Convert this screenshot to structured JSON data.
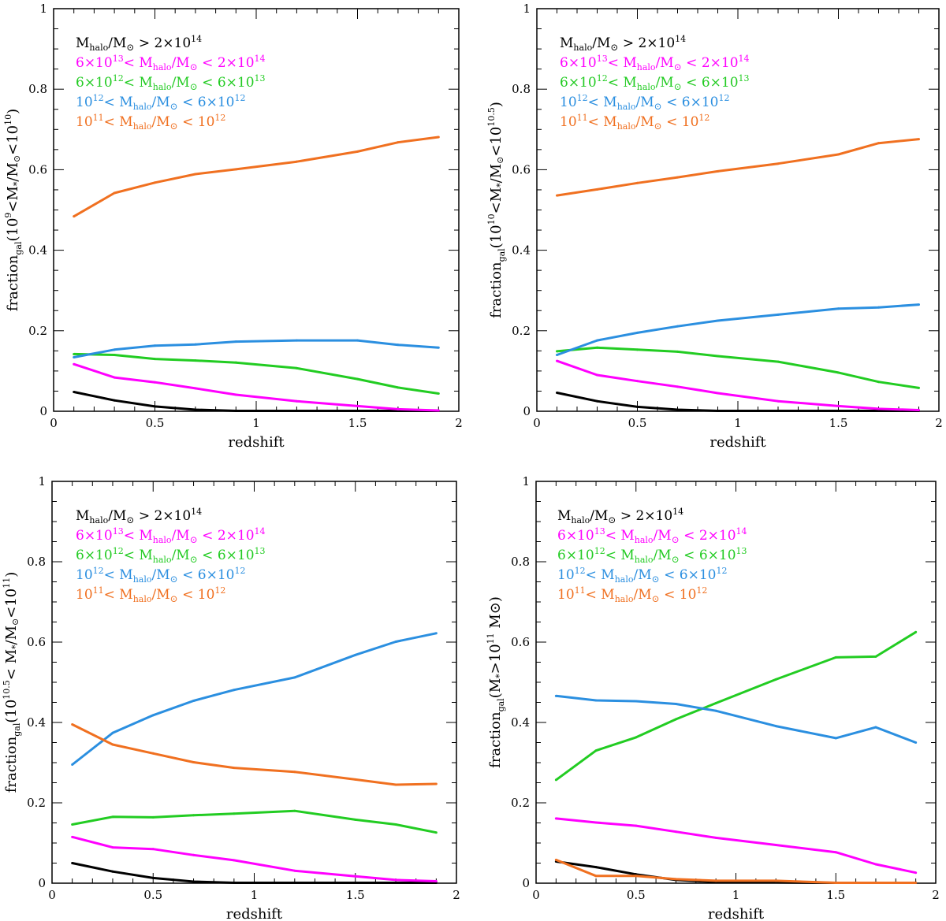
{
  "figure": {
    "description_free": true
  },
  "legend": {
    "colors": [
      "#000000",
      "#ff00ff",
      "#22cc22",
      "#2b8fe0",
      "#f07020"
    ],
    "lines": [
      {
        "a": "M",
        "b": "halo",
        "c": "/M",
        "d": "⊙",
        "e": " > 2×10",
        "f": "14"
      },
      {
        "pre": "6×10",
        "preSup": "13",
        "mid": "< M",
        "sub": "halo",
        "post": "/M",
        "sun": "⊙",
        "tail": " < 2×10",
        "tailSup": "14"
      },
      {
        "pre": "6×10",
        "preSup": "12",
        "mid": "< M",
        "sub": "halo",
        "post": "/M",
        "sun": "⊙",
        "tail": " < 6×10",
        "tailSup": "13"
      },
      {
        "pre": "10",
        "preSup": "12",
        "mid": "< M",
        "sub": "halo",
        "post": "/M",
        "sun": "⊙",
        "tail": " < 6×10",
        "tailSup": "12"
      },
      {
        "pre": "10",
        "preSup": "11",
        "mid": "< M",
        "sub": "halo",
        "post": "/M",
        "sun": "⊙",
        "tail": " < 10",
        "tailSup": "12"
      }
    ]
  },
  "chart_data": [
    {
      "type": "line",
      "xlabel": "redshift",
      "ylabel": "fraction_gal(10^9<M*/M⊙<10^10)",
      "ylabelParts": {
        "pre": "fraction",
        "sub": "gal",
        "body": "(10",
        "sup1": "9",
        "mid": "<M",
        "sub2": "*",
        "mid2": "/M",
        "sun": "⊙",
        "mid3": "<10",
        "sup2": "10",
        "end": ")"
      },
      "xlim": [
        0,
        2
      ],
      "ylim": [
        0,
        1
      ],
      "xticks": [
        "0",
        "0.5",
        "1",
        "1.5",
        "2"
      ],
      "yticks": [
        "0",
        "0.2",
        "0.4",
        "0.6",
        "0.8",
        "1"
      ],
      "x": [
        0.1,
        0.3,
        0.5,
        0.7,
        0.9,
        1.2,
        1.5,
        1.7,
        1.9
      ],
      "series": [
        {
          "name": "Mhalo/M⊙ > 2×10^14",
          "values": [
            0.048,
            0.027,
            0.012,
            0.004,
            0.001,
            0.001,
            0.001,
            0.001,
            0.001
          ]
        },
        {
          "name": "6×10^13 < Mhalo/M⊙ < 2×10^14",
          "values": [
            0.117,
            0.084,
            0.072,
            0.057,
            0.041,
            0.025,
            0.013,
            0.005,
            0.002
          ]
        },
        {
          "name": "6×10^12 < Mhalo/M⊙ < 6×10^13",
          "values": [
            0.142,
            0.14,
            0.13,
            0.126,
            0.121,
            0.107,
            0.08,
            0.059,
            0.044
          ]
        },
        {
          "name": "10^12 < Mhalo/M⊙ < 6×10^12",
          "values": [
            0.134,
            0.153,
            0.163,
            0.166,
            0.173,
            0.176,
            0.176,
            0.165,
            0.158
          ]
        },
        {
          "name": "10^11 < Mhalo/M⊙ < 10^12",
          "values": [
            0.484,
            0.542,
            0.568,
            0.589,
            0.601,
            0.62,
            0.645,
            0.668,
            0.681
          ]
        }
      ]
    },
    {
      "type": "line",
      "xlabel": "redshift",
      "ylabel": "fraction_gal(10^10<M*/M⊙<10^10.5)",
      "ylabelParts": {
        "pre": "fraction",
        "sub": "gal",
        "body": "(10",
        "sup1": "10",
        "mid": "<M",
        "sub2": "*",
        "mid2": "/M",
        "sun": "⊙",
        "mid3": "<10",
        "sup2": "10.5",
        "end": ")"
      },
      "xlim": [
        0,
        2
      ],
      "ylim": [
        0,
        1
      ],
      "xticks": [
        "0",
        "0.5",
        "1",
        "1.5",
        "2"
      ],
      "yticks": [
        "0",
        "0.2",
        "0.4",
        "0.6",
        "0.8",
        "1"
      ],
      "x": [
        0.1,
        0.3,
        0.5,
        0.7,
        0.9,
        1.2,
        1.5,
        1.7,
        1.9
      ],
      "series": [
        {
          "name": "Mhalo/M⊙ > 2×10^14",
          "values": [
            0.046,
            0.025,
            0.011,
            0.004,
            0.001,
            0.001,
            0.001,
            0.001,
            0.001
          ]
        },
        {
          "name": "6×10^13 < Mhalo/M⊙ < 2×10^14",
          "values": [
            0.125,
            0.09,
            0.075,
            0.061,
            0.045,
            0.025,
            0.013,
            0.006,
            0.003
          ]
        },
        {
          "name": "6×10^12 < Mhalo/M⊙ < 6×10^13",
          "values": [
            0.149,
            0.158,
            0.153,
            0.148,
            0.137,
            0.123,
            0.096,
            0.073,
            0.058
          ]
        },
        {
          "name": "10^12 < Mhalo/M⊙ < 6×10^12",
          "values": [
            0.14,
            0.176,
            0.195,
            0.211,
            0.225,
            0.24,
            0.255,
            0.258,
            0.265
          ]
        },
        {
          "name": "10^11 < Mhalo/M⊙ < 10^12",
          "values": [
            0.536,
            0.551,
            0.567,
            0.581,
            0.596,
            0.615,
            0.638,
            0.666,
            0.676
          ]
        }
      ]
    },
    {
      "type": "line",
      "xlabel": "redshift",
      "ylabel": "fraction_gal(10^10.5< M*/M⊙<10^11)",
      "ylabelParts": {
        "pre": "fraction",
        "sub": "gal",
        "body": "(10",
        "sup1": "10.5",
        "mid": "< M",
        "sub2": "*",
        "mid2": "/M",
        "sun": "⊙",
        "mid3": "<10",
        "sup2": "11",
        "end": ")"
      },
      "xlim": [
        0,
        2
      ],
      "ylim": [
        0,
        1
      ],
      "xticks": [
        "0",
        "0.5",
        "1",
        "1.5",
        "2"
      ],
      "yticks": [
        "0",
        "0.2",
        "0.4",
        "0.6",
        "0.8",
        "1"
      ],
      "x": [
        0.1,
        0.3,
        0.5,
        0.7,
        0.9,
        1.2,
        1.5,
        1.7,
        1.9
      ],
      "series": [
        {
          "name": "Mhalo/M⊙ > 2×10^14",
          "values": [
            0.05,
            0.029,
            0.013,
            0.004,
            0.001,
            0.001,
            0.001,
            0.001,
            0.001
          ]
        },
        {
          "name": "6×10^13 < Mhalo/M⊙ < 2×10^14",
          "values": [
            0.115,
            0.089,
            0.085,
            0.07,
            0.057,
            0.031,
            0.017,
            0.008,
            0.005
          ]
        },
        {
          "name": "6×10^12 < Mhalo/M⊙ < 6×10^13",
          "values": [
            0.146,
            0.165,
            0.164,
            0.169,
            0.173,
            0.18,
            0.158,
            0.146,
            0.126
          ]
        },
        {
          "name": "10^12 < Mhalo/M⊙ < 6×10^12",
          "values": [
            0.295,
            0.374,
            0.418,
            0.454,
            0.481,
            0.512,
            0.568,
            0.601,
            0.622
          ]
        },
        {
          "name": "10^11 < Mhalo/M⊙ < 10^12",
          "values": [
            0.395,
            0.345,
            0.323,
            0.301,
            0.287,
            0.277,
            0.258,
            0.245,
            0.247
          ]
        }
      ]
    },
    {
      "type": "line",
      "xlabel": "redshift",
      "ylabel": "fraction_gal(M*>10^11 M⊙)",
      "ylabelParts": {
        "pre": "fraction",
        "sub": "gal",
        "body": "(M",
        "sup1": "",
        "mid": "",
        "sub2": "*",
        "mid2": ">10",
        "sun": "",
        "mid3": "",
        "sup2": "11",
        "end": " M⊙)"
      },
      "xlim": [
        0,
        2
      ],
      "ylim": [
        0,
        1
      ],
      "xticks": [
        "0",
        "0.5",
        "1",
        "1.5",
        "2"
      ],
      "yticks": [
        "0",
        "0.2",
        "0.4",
        "0.6",
        "0.8",
        "1"
      ],
      "x": [
        0.1,
        0.3,
        0.5,
        0.7,
        0.9,
        1.2,
        1.5,
        1.7,
        1.9
      ],
      "series": [
        {
          "name": "Mhalo/M⊙ > 2×10^14",
          "values": [
            0.054,
            0.04,
            0.022,
            0.008,
            0.003,
            0.002,
            0.001,
            0.001,
            0.001
          ]
        },
        {
          "name": "6×10^13 < Mhalo/M⊙ < 2×10^14",
          "values": [
            0.161,
            0.151,
            0.143,
            0.128,
            0.113,
            0.095,
            0.077,
            0.047,
            0.026
          ]
        },
        {
          "name": "6×10^12 < Mhalo/M⊙ < 6×10^13",
          "values": [
            0.257,
            0.33,
            0.363,
            0.408,
            0.448,
            0.507,
            0.562,
            0.564,
            0.625
          ]
        },
        {
          "name": "10^12 < Mhalo/M⊙ < 6×10^12",
          "values": [
            0.466,
            0.455,
            0.453,
            0.446,
            0.429,
            0.391,
            0.361,
            0.388,
            0.35
          ]
        },
        {
          "name": "10^11 < Mhalo/M⊙ < 10^12",
          "values": [
            0.058,
            0.018,
            0.018,
            0.01,
            0.006,
            0.006,
            0.001,
            0.001,
            0.001
          ]
        }
      ]
    }
  ]
}
